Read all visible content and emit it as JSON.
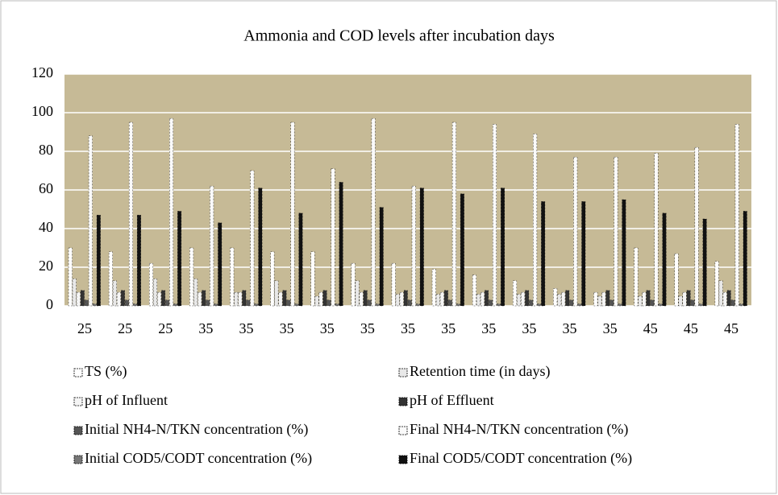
{
  "chart_data": {
    "type": "bar",
    "title": "Ammonia and COD levels after incubation days",
    "categories": [
      "25",
      "25",
      "25",
      "35",
      "35",
      "35",
      "35",
      "35",
      "35",
      "35",
      "35",
      "35",
      "35",
      "35",
      "45",
      "45",
      "45"
    ],
    "series": [
      {
        "name": "TS (%)",
        "color": "#ffffff",
        "values": [
          30,
          28,
          22,
          30,
          30,
          28,
          28,
          22,
          22,
          19,
          16,
          13,
          9,
          7,
          30,
          27,
          23
        ]
      },
      {
        "name": "Retention time (in days)",
        "color": "#e8e8e8",
        "values": [
          14,
          13,
          14,
          14,
          7,
          13,
          5,
          13,
          6,
          6,
          6,
          6,
          6,
          5,
          5,
          5,
          13
        ]
      },
      {
        "name": "pH of Influent",
        "color": "#f5f5f5",
        "values": [
          7,
          7,
          7,
          7,
          7,
          7,
          7,
          7,
          7,
          7,
          7,
          7,
          7,
          7,
          7,
          7,
          7
        ]
      },
      {
        "name": "pH of Effluent",
        "color": "#333333",
        "values": [
          8,
          8,
          8,
          8,
          8,
          8,
          8,
          8,
          8,
          8,
          8,
          8,
          8,
          8,
          8,
          8,
          8
        ]
      },
      {
        "name": "Initial NH4-N/TKN concentration (%)",
        "color": "#555555",
        "values": [
          3,
          3,
          3,
          3,
          3,
          3,
          3,
          3,
          3,
          3,
          3,
          3,
          3,
          3,
          3,
          3,
          3
        ]
      },
      {
        "name": "Final NH4-N/TKN concentration (%)",
        "color": "#fafafa",
        "values": [
          88,
          95,
          97,
          62,
          70,
          95,
          71,
          97,
          62,
          95,
          94,
          89,
          77,
          77,
          79,
          82,
          94
        ]
      },
      {
        "name": "Initial COD5/CODT concentration (%)",
        "color": "#777777",
        "values": [
          1,
          1,
          1,
          1,
          1,
          1,
          1,
          1,
          1,
          1,
          1,
          1,
          1,
          1,
          1,
          1,
          1
        ]
      },
      {
        "name": "Final COD5/CODT concentration (%)",
        "color": "#111111",
        "values": [
          47,
          47,
          49,
          43,
          61,
          48,
          64,
          51,
          61,
          58,
          61,
          54,
          54,
          55,
          48,
          45,
          49
        ]
      }
    ],
    "ylim": [
      0,
      120
    ],
    "yticks": [
      0,
      20,
      40,
      60,
      80,
      100,
      120
    ],
    "grid": true,
    "legend": "bottom"
  }
}
